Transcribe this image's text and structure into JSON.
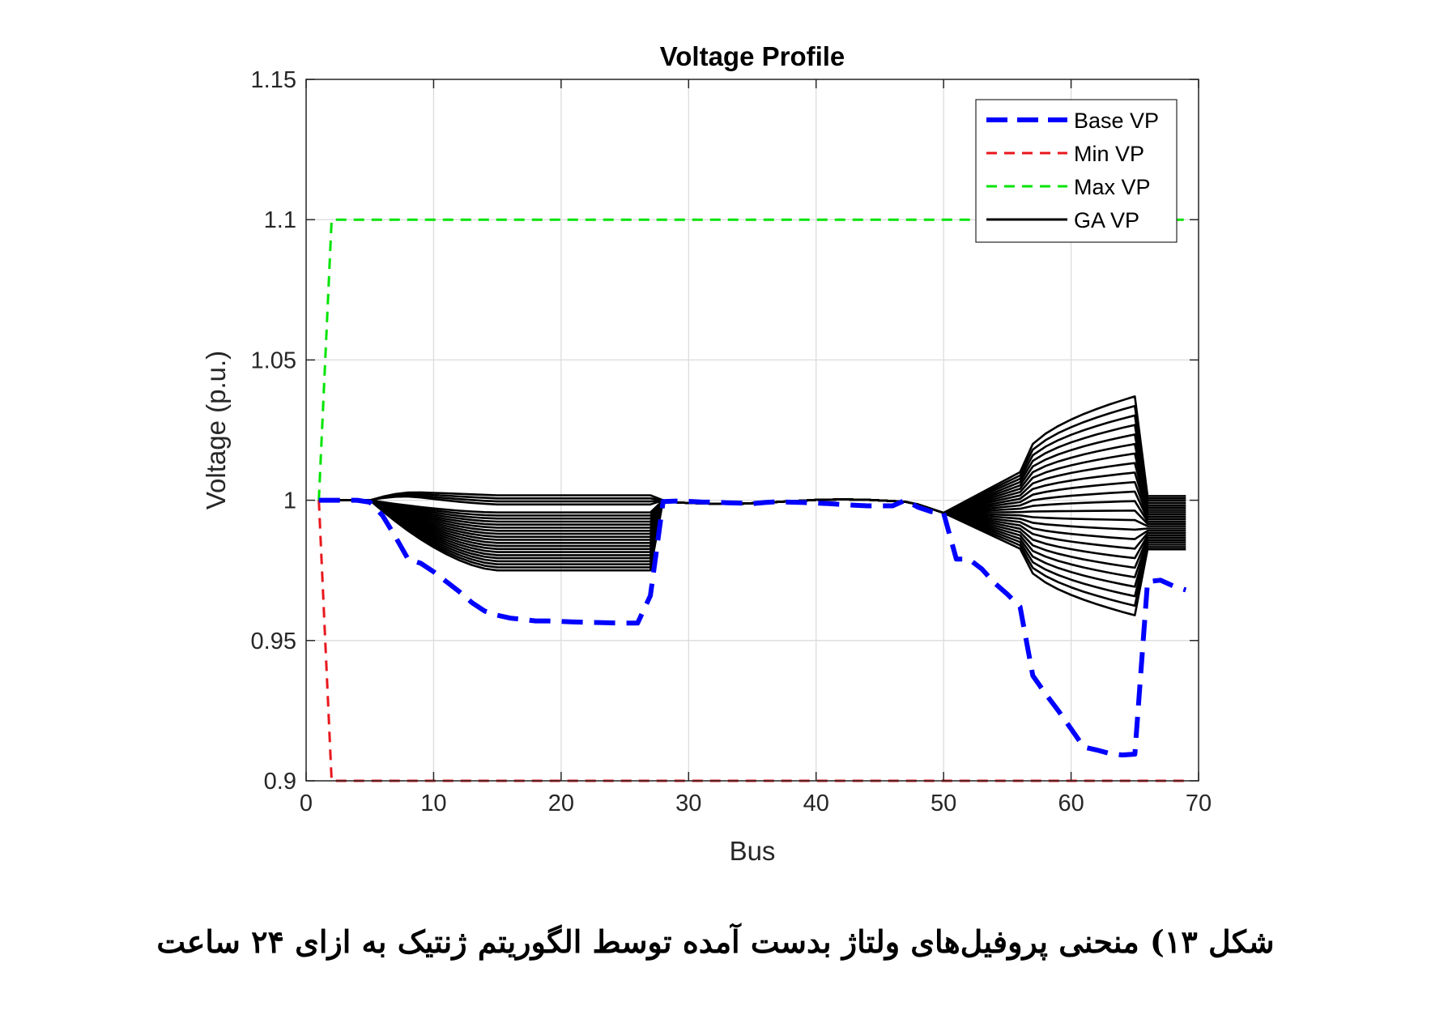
{
  "chart_data": {
    "type": "line",
    "title": "Voltage Profile",
    "xlabel": "Bus",
    "ylabel": "Voltage (p.u.)",
    "xlim": [
      0,
      70
    ],
    "ylim": [
      0.9,
      1.15
    ],
    "xticks": [
      "0",
      "10",
      "20",
      "30",
      "40",
      "50",
      "60",
      "70"
    ],
    "yticks": [
      "0.9",
      "0.95",
      "1",
      "1.05",
      "1.1",
      "1.15"
    ],
    "grid": true,
    "legend_position": "top-right",
    "series": [
      {
        "name": "Base VP",
        "color": "#0000ff",
        "style": "dashed",
        "x": [
          1,
          2,
          3,
          4,
          5,
          6,
          7,
          8,
          9,
          10,
          11,
          12,
          13,
          14,
          15,
          16,
          17,
          18,
          19,
          20,
          21,
          22,
          23,
          24,
          25,
          26,
          27,
          28,
          29,
          30,
          31,
          32,
          33,
          34,
          35,
          36,
          37,
          38,
          39,
          40,
          41,
          42,
          43,
          44,
          45,
          46,
          47,
          48,
          49,
          50,
          51,
          52,
          53,
          54,
          55,
          56,
          57,
          58,
          59,
          60,
          61,
          62,
          63,
          64,
          65,
          66,
          67,
          68,
          69
        ],
        "y": [
          1.0,
          1.0,
          1.0,
          1.0,
          0.9993,
          0.9945,
          0.987,
          0.979,
          0.9775,
          0.9745,
          0.971,
          0.9675,
          0.9635,
          0.9605,
          0.959,
          0.958,
          0.9575,
          0.957,
          0.957,
          0.9568,
          0.9566,
          0.9565,
          0.9564,
          0.9563,
          0.9562,
          0.9562,
          0.966,
          0.9995,
          0.9997,
          0.9996,
          0.9994,
          0.9993,
          0.9991,
          0.999,
          0.9988,
          0.9992,
          0.9995,
          0.9993,
          0.9992,
          0.999,
          0.9988,
          0.9985,
          0.9982,
          0.998,
          0.998,
          0.998,
          1.0,
          0.9975,
          0.996,
          0.9955,
          0.979,
          0.979,
          0.9755,
          0.9705,
          0.9665,
          0.962,
          0.9375,
          0.931,
          0.925,
          0.9185,
          0.912,
          0.911,
          0.9098,
          0.9092,
          0.9095,
          0.971,
          0.9715,
          0.9695,
          0.968
        ]
      },
      {
        "name": "Min VP",
        "color": "#e8161c",
        "style": "dashed",
        "x": [
          1,
          2,
          3,
          69
        ],
        "y": [
          1.0,
          0.9,
          0.9,
          0.9
        ]
      },
      {
        "name": "Max VP",
        "color": "#00e400",
        "style": "dashed",
        "x": [
          1,
          2,
          3,
          69
        ],
        "y": [
          1.0,
          1.1,
          1.1,
          1.1
        ]
      },
      {
        "name": "GA VP",
        "color": "#000000",
        "style": "solid",
        "count": 24,
        "segment_a": {
          "x": [
            5,
            7,
            10,
            15,
            27
          ],
          "end_min": 0.975,
          "end_max": 1.0
        },
        "segment_b": {
          "x": [
            50,
            52,
            56,
            58,
            61,
            65
          ],
          "end_min": 0.959,
          "end_max": 1.037,
          "tail_min": 0.9825,
          "tail_max": 1.0015
        }
      }
    ]
  },
  "legend": {
    "items": [
      {
        "label": "Base VP",
        "color": "#0000ff"
      },
      {
        "label": "Min VP",
        "color": "#e8161c"
      },
      {
        "label": "Max VP",
        "color": "#00e400"
      },
      {
        "label": "GA VP",
        "color": "#000000"
      }
    ]
  },
  "caption": {
    "text": "شکل ۱۳) منحنی پروفیل‌های ولتاژ بدست آمده توسط الگوریتم ژنتیک به ازای ۲۴ ساعت"
  }
}
